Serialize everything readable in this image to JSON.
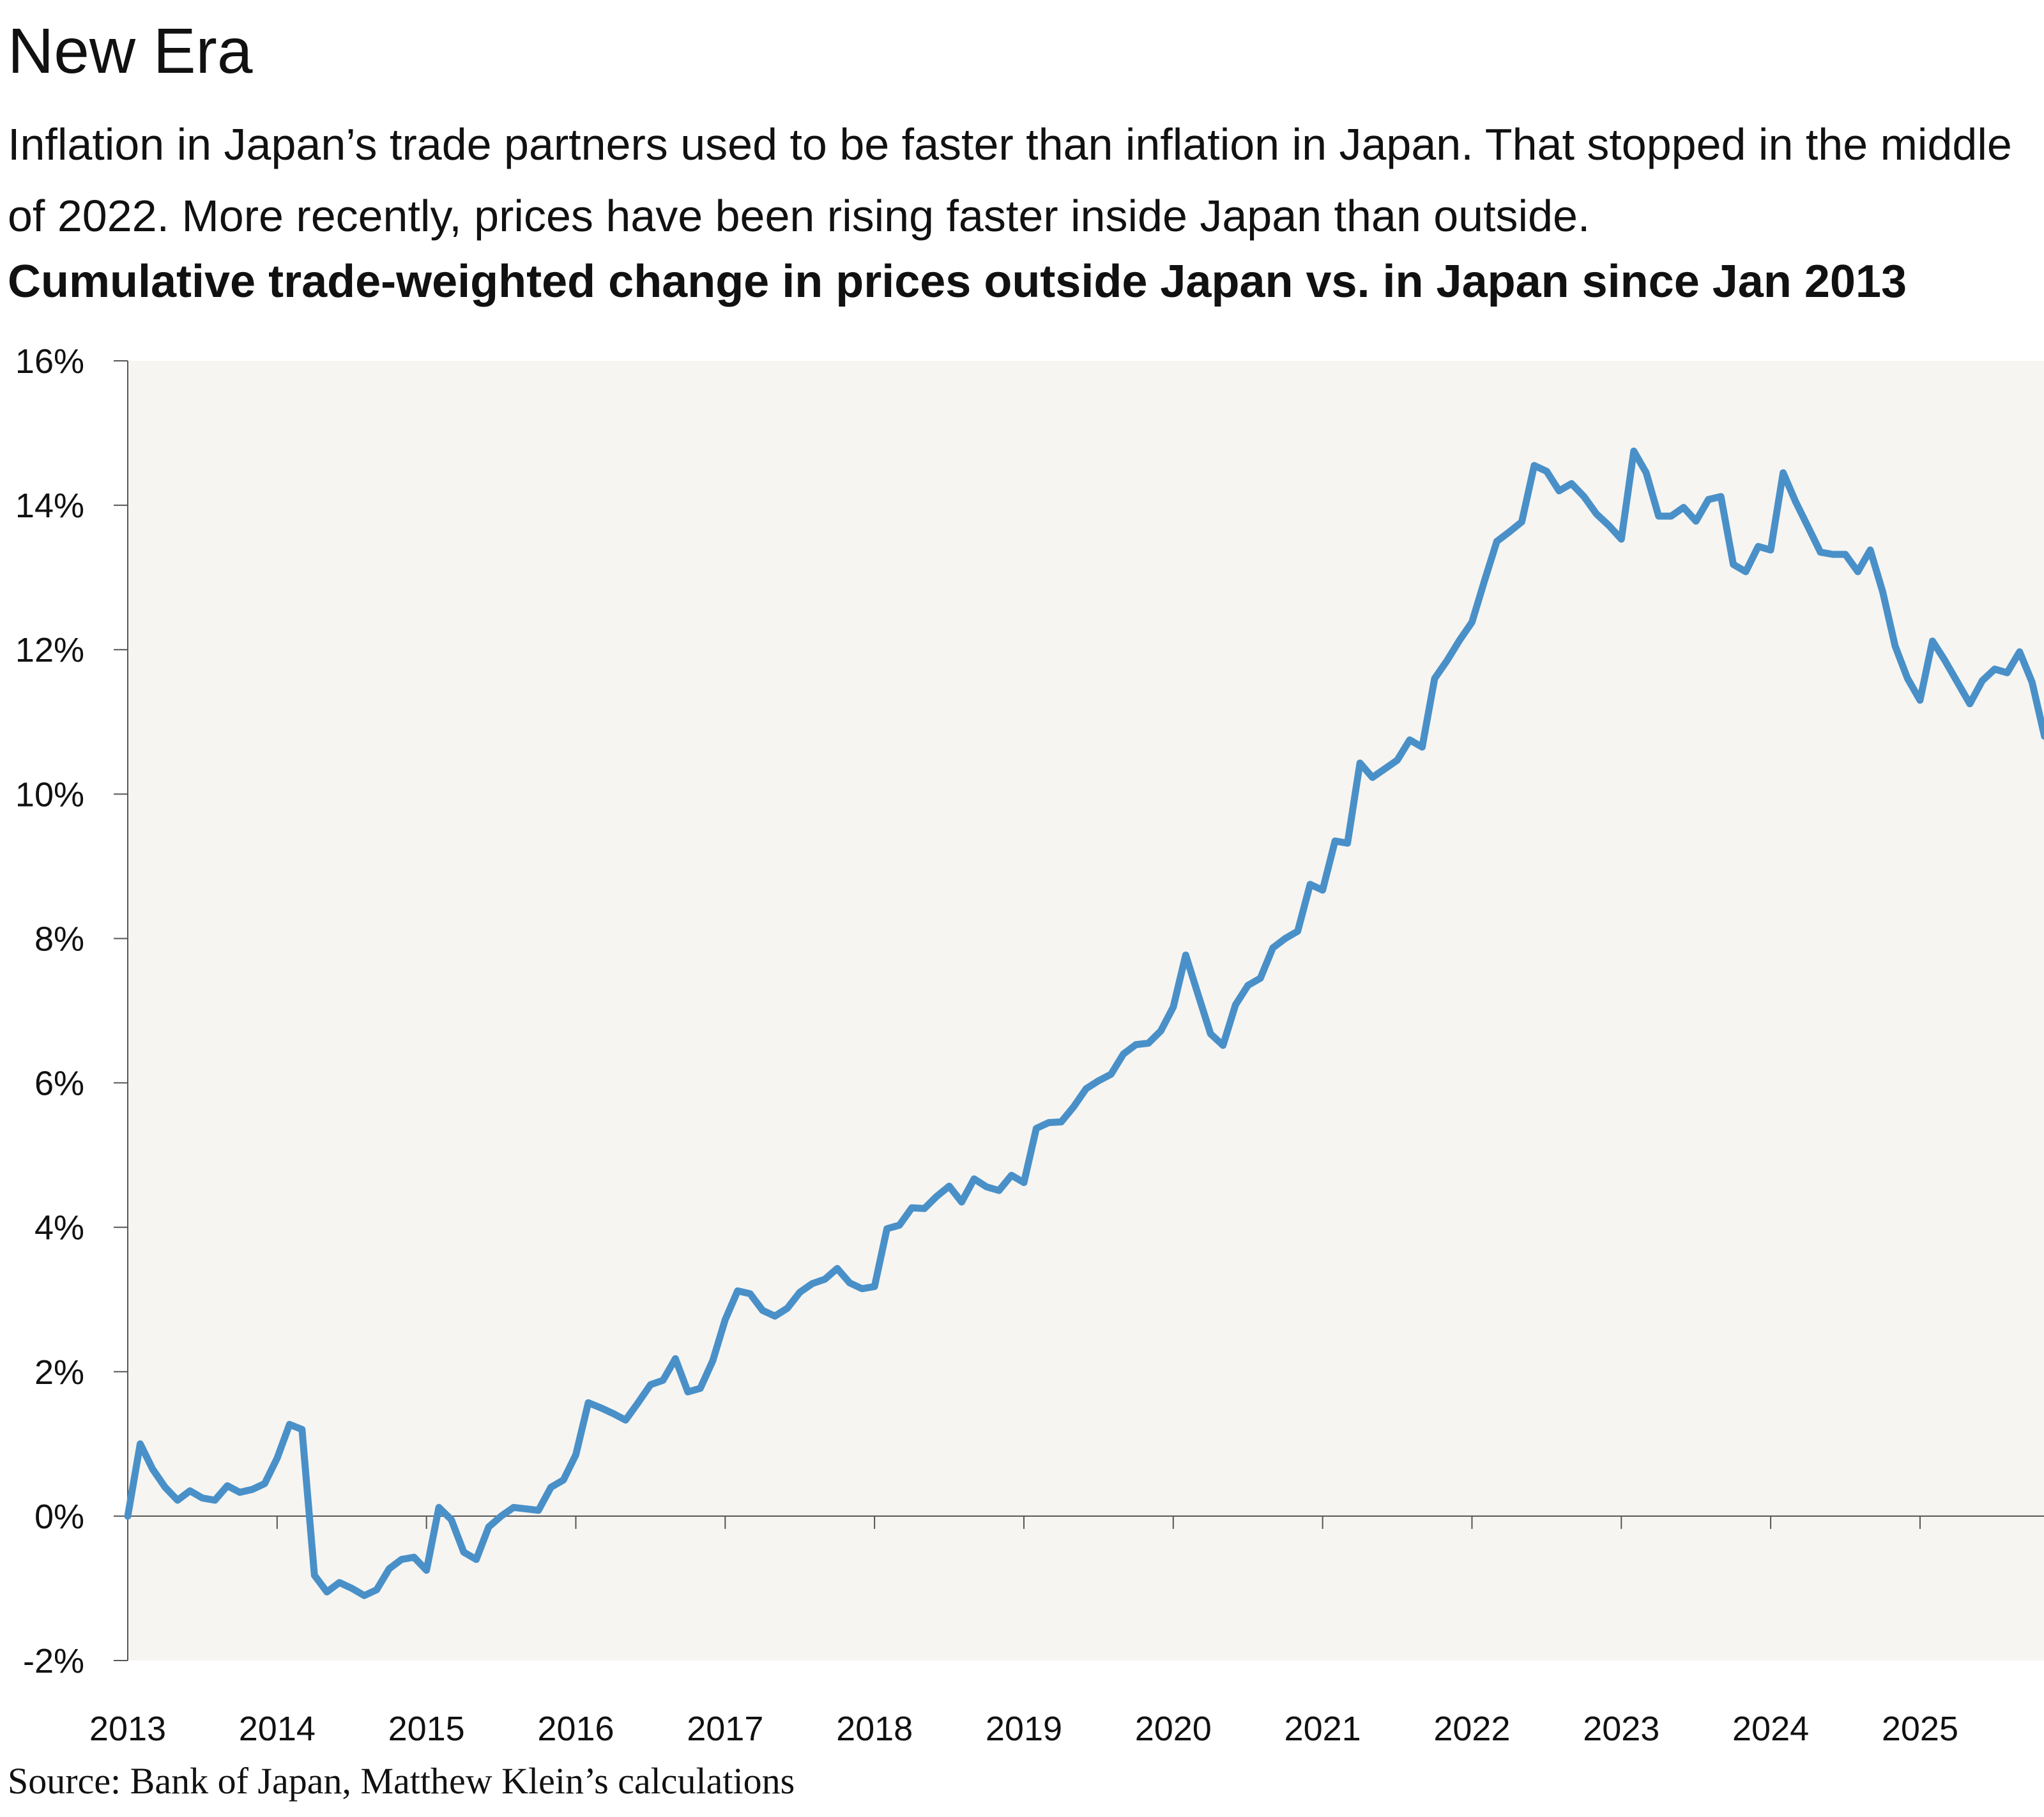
{
  "header": {
    "title": "New Era",
    "subtitle": "Inflation in Japan’s trade partners used to be faster than inflation in Japan. That stopped in the middle of 2022. More recently, prices have been rising faster inside Japan than outside.",
    "chart_title": "Cumulative trade-weighted change in prices outside Japan vs. in Japan since Jan 2013"
  },
  "footer": {
    "source": "Source: Bank of Japan, Matthew Klein’s calculations"
  },
  "colors": {
    "line": "#4a90c8",
    "plot_bg": "#f6f5f2",
    "axis": "#555555"
  },
  "chart_data": {
    "type": "line",
    "title": "Cumulative trade-weighted change in prices outside Japan vs. in Japan since Jan 2013",
    "xlabel": "",
    "ylabel": "",
    "ylim": [
      -2,
      16
    ],
    "xlim": [
      2013.0,
      2025.83
    ],
    "y_ticks": [
      -2,
      0,
      2,
      4,
      6,
      8,
      10,
      12,
      14,
      16
    ],
    "y_tick_labels": [
      "-2%",
      "0%",
      "2%",
      "4%",
      "6%",
      "8%",
      "10%",
      "12%",
      "14%",
      "16%"
    ],
    "x_ticks": [
      2013,
      2014,
      2015,
      2016,
      2017,
      2018,
      2019,
      2020,
      2021,
      2022,
      2023,
      2024,
      2025
    ],
    "x_tick_labels": [
      "2013",
      "2014",
      "2015",
      "2016",
      "2017",
      "2018",
      "2019",
      "2020",
      "2021",
      "2022",
      "2023",
      "2024",
      "2025"
    ],
    "grid": false,
    "series": [
      {
        "name": "Cumulative trade-weighted change in prices outside Japan vs. in Japan",
        "start": 2013.0,
        "step": 0.0833333,
        "values": [
          0.0,
          1.0,
          0.65,
          0.4,
          0.22,
          0.35,
          0.25,
          0.22,
          0.42,
          0.33,
          0.37,
          0.45,
          0.8,
          1.27,
          1.2,
          -0.82,
          -1.05,
          -0.92,
          -1.0,
          -1.1,
          -1.02,
          -0.73,
          -0.6,
          -0.57,
          -0.75,
          0.12,
          -0.05,
          -0.5,
          -0.6,
          -0.15,
          0.0,
          0.12,
          0.1,
          0.08,
          0.4,
          0.5,
          0.85,
          1.57,
          1.5,
          1.42,
          1.33,
          1.57,
          1.82,
          1.88,
          2.18,
          1.72,
          1.77,
          2.15,
          2.72,
          3.12,
          3.08,
          2.85,
          2.77,
          2.88,
          3.1,
          3.22,
          3.28,
          3.43,
          3.23,
          3.15,
          3.18,
          3.98,
          4.03,
          4.27,
          4.26,
          4.43,
          4.57,
          4.35,
          4.67,
          4.56,
          4.51,
          4.72,
          4.62,
          5.37,
          5.45,
          5.46,
          5.67,
          5.92,
          6.03,
          6.12,
          6.4,
          6.53,
          6.55,
          6.72,
          7.05,
          7.77,
          7.22,
          6.68,
          6.52,
          7.08,
          7.35,
          7.45,
          7.87,
          8.0,
          8.1,
          8.75,
          8.67,
          9.35,
          9.32,
          10.43,
          10.23,
          10.35,
          10.47,
          10.75,
          10.65,
          11.6,
          11.85,
          12.13,
          12.38,
          12.95,
          13.5,
          13.63,
          13.77,
          14.55,
          14.47,
          14.2,
          14.3,
          14.12,
          13.88,
          13.72,
          13.53,
          14.75,
          14.45,
          13.85,
          13.85,
          13.97,
          13.78,
          14.08,
          14.12,
          13.18,
          13.08,
          13.43,
          13.38,
          14.45,
          14.05,
          13.7,
          13.35,
          13.32,
          13.32,
          13.08,
          13.38,
          12.8,
          12.05,
          11.6,
          11.3,
          12.12,
          11.85,
          11.55,
          11.25,
          11.57,
          11.73,
          11.68,
          11.97,
          11.55,
          10.8
        ]
      }
    ]
  }
}
